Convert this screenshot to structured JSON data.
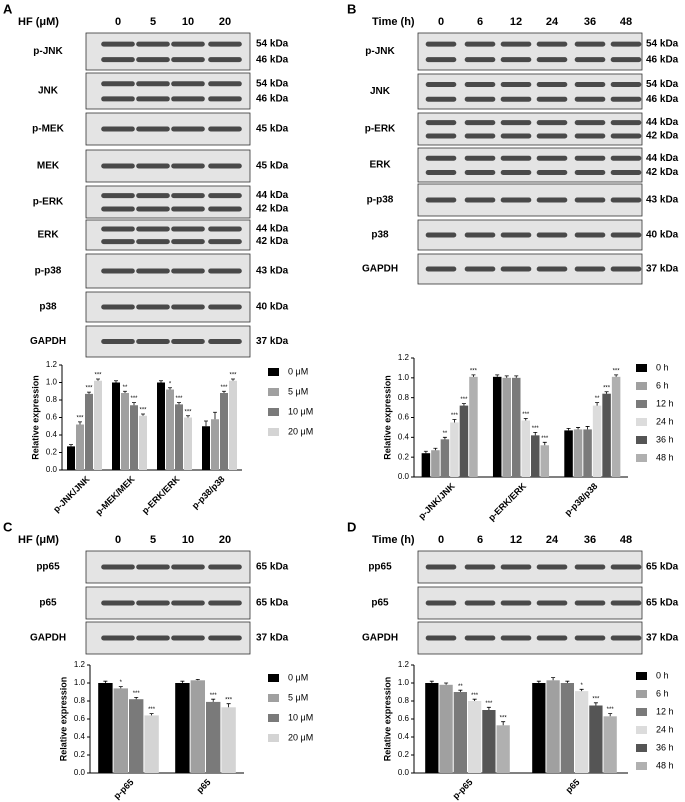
{
  "panels": [
    {
      "letter": "A",
      "header": "HF (μM)",
      "conditions": [
        "0",
        "5",
        "10",
        "20"
      ],
      "rows": [
        {
          "label": "p-JNK",
          "kda": [
            "54 kDa",
            "46 kDa"
          ]
        },
        {
          "label": "JNK",
          "kda": [
            "54 kDa",
            "46 kDa"
          ]
        },
        {
          "label": "p-MEK",
          "kda": [
            "45 kDa"
          ]
        },
        {
          "label": "MEK",
          "kda": [
            "45 kDa"
          ]
        },
        {
          "label": "p-ERK",
          "kda": [
            "44 kDa",
            "42 kDa"
          ]
        },
        {
          "label": "ERK",
          "kda": [
            "44 kDa",
            "42 kDa"
          ]
        },
        {
          "label": "p-p38",
          "kda": [
            "43 kDa"
          ]
        },
        {
          "label": "p38",
          "kda": [
            "40 kDa"
          ]
        },
        {
          "label": "GAPDH",
          "kda": [
            "37 kDa"
          ]
        }
      ]
    },
    {
      "letter": "B",
      "header": "Time (h)",
      "conditions": [
        "0",
        "6",
        "12",
        "24",
        "36",
        "48"
      ],
      "rows": [
        {
          "label": "p-JNK",
          "kda": [
            "54 kDa",
            "46 kDa"
          ]
        },
        {
          "label": "JNK",
          "kda": [
            "54 kDa",
            "46 kDa"
          ]
        },
        {
          "label": "p-ERK",
          "kda": [
            "44 kDa",
            "42 kDa"
          ]
        },
        {
          "label": "ERK",
          "kda": [
            "44 kDa",
            "42 kDa"
          ]
        },
        {
          "label": "p-p38",
          "kda": [
            "43 kDa"
          ]
        },
        {
          "label": "p38",
          "kda": [
            "40 kDa"
          ]
        },
        {
          "label": "GAPDH",
          "kda": [
            "37 kDa"
          ]
        }
      ]
    },
    {
      "letter": "C",
      "header": "HF (μM)",
      "conditions": [
        "0",
        "5",
        "10",
        "20"
      ],
      "rows": [
        {
          "label": "pp65",
          "kda": [
            "65 kDa"
          ]
        },
        {
          "label": "p65",
          "kda": [
            "65 kDa"
          ]
        },
        {
          "label": "GAPDH",
          "kda": [
            "37 kDa"
          ]
        }
      ]
    },
    {
      "letter": "D",
      "header": "Time (h)",
      "conditions": [
        "0",
        "6",
        "12",
        "24",
        "36",
        "48"
      ],
      "rows": [
        {
          "label": "pp65",
          "kda": [
            "65 kDa"
          ]
        },
        {
          "label": "p65",
          "kda": [
            "65 kDa"
          ]
        },
        {
          "label": "GAPDH",
          "kda": [
            "37 kDa"
          ]
        }
      ]
    }
  ],
  "chart_data": [
    {
      "type": "bar",
      "ylabel": "Relative expression",
      "categories": [
        "p-JNK/JNK",
        "p-MEK/MEK",
        "p-ERK/ERK",
        "p-p38/p38"
      ],
      "ylim": [
        0,
        1.2
      ],
      "yticks": [
        {
          "value": 0,
          "label": "0.0"
        },
        {
          "value": 0.2,
          "label": "0.2"
        },
        {
          "value": 0.4,
          "label": "0.4"
        },
        {
          "value": 0.6,
          "label": "0.6"
        },
        {
          "value": 0.8,
          "label": "0.8"
        },
        {
          "value": 1,
          "label": "1.0"
        },
        {
          "value": 1.2,
          "label": "1.2"
        }
      ],
      "series": [
        {
          "name": "0 μM",
          "color": "#000000",
          "values": [
            0.27,
            1.0,
            1.0,
            0.5
          ],
          "errors": [
            0.02,
            0.02,
            0.02,
            0.06
          ],
          "labels": [
            null,
            null,
            null,
            null
          ]
        },
        {
          "name": "5 μM",
          "color": "#a0a0a0",
          "values": [
            0.52,
            0.88,
            0.92,
            0.58
          ],
          "errors": [
            0.03,
            0.02,
            0.02,
            0.08
          ],
          "labels": [
            "***",
            "**",
            "*",
            null
          ]
        },
        {
          "name": "10 μM",
          "color": "#7a7a7a",
          "values": [
            0.87,
            0.74,
            0.75,
            0.88
          ],
          "errors": [
            0.02,
            0.03,
            0.02,
            0.02
          ],
          "labels": [
            "***",
            "***",
            "***",
            "***"
          ]
        },
        {
          "name": "20 μM",
          "color": "#d4d4d4",
          "values": [
            1.02,
            0.62,
            0.6,
            1.02
          ],
          "errors": [
            0.02,
            0.02,
            0.02,
            0.02
          ],
          "labels": [
            "***",
            "***",
            "***",
            "***"
          ]
        }
      ]
    },
    {
      "type": "bar",
      "ylabel": "Relative expression",
      "categories": [
        "p-JNK/JNK",
        "p-ERK/ERK",
        "p-p38/p38"
      ],
      "ylim": [
        0,
        1.2
      ],
      "yticks": [
        {
          "value": 0,
          "label": "0.0"
        },
        {
          "value": 0.2,
          "label": "0.2"
        },
        {
          "value": 0.4,
          "label": "0.4"
        },
        {
          "value": 0.6,
          "label": "0.6"
        },
        {
          "value": 0.8,
          "label": "0.8"
        },
        {
          "value": 1,
          "label": "1.0"
        },
        {
          "value": 1.2,
          "label": "1.2"
        }
      ],
      "series": [
        {
          "name": "0 h",
          "color": "#000000",
          "values": [
            0.24,
            1.01,
            0.47
          ],
          "errors": [
            0.02,
            0.02,
            0.02
          ],
          "labels": [
            null,
            null,
            null
          ]
        },
        {
          "name": "6 h",
          "color": "#a0a0a0",
          "values": [
            0.27,
            1.0,
            0.48
          ],
          "errors": [
            0.02,
            0.02,
            0.02
          ],
          "labels": [
            null,
            null,
            null
          ]
        },
        {
          "name": "12 h",
          "color": "#7a7a7a",
          "values": [
            0.38,
            1.0,
            0.48
          ],
          "errors": [
            0.02,
            0.02,
            0.03
          ],
          "labels": [
            "**",
            null,
            null
          ]
        },
        {
          "name": "24 h",
          "color": "#dcdcdc",
          "values": [
            0.55,
            0.57,
            0.72
          ],
          "errors": [
            0.03,
            0.02,
            0.03
          ],
          "labels": [
            "***",
            "***",
            "**"
          ]
        },
        {
          "name": "36 h",
          "color": "#555555",
          "values": [
            0.72,
            0.42,
            0.84
          ],
          "errors": [
            0.02,
            0.03,
            0.02
          ],
          "labels": [
            "***",
            "***",
            "***"
          ]
        },
        {
          "name": "48 h",
          "color": "#b0b0b0",
          "values": [
            1.01,
            0.32,
            1.01
          ],
          "errors": [
            0.02,
            0.03,
            0.02
          ],
          "labels": [
            "***",
            "***",
            "***"
          ]
        }
      ]
    },
    {
      "type": "bar",
      "ylabel": "Relative expression",
      "categories": [
        "p-p65",
        "p65"
      ],
      "ylim": [
        0,
        1.2
      ],
      "yticks": [
        {
          "value": 0,
          "label": "0.0"
        },
        {
          "value": 0.2,
          "label": "0.2"
        },
        {
          "value": 0.4,
          "label": "0.4"
        },
        {
          "value": 0.6,
          "label": "0.6"
        },
        {
          "value": 0.8,
          "label": "0.8"
        },
        {
          "value": 1,
          "label": "1.0"
        },
        {
          "value": 1.2,
          "label": "1.2"
        }
      ],
      "series": [
        {
          "name": "0 μM",
          "color": "#000000",
          "values": [
            1.0,
            1.0
          ],
          "errors": [
            0.02,
            0.02
          ],
          "labels": [
            null,
            null
          ]
        },
        {
          "name": "5 μM",
          "color": "#a0a0a0",
          "values": [
            0.94,
            1.03
          ],
          "errors": [
            0.02,
            0.01
          ],
          "labels": [
            "*",
            null
          ]
        },
        {
          "name": "10 μM",
          "color": "#7a7a7a",
          "values": [
            0.82,
            0.79
          ],
          "errors": [
            0.02,
            0.03
          ],
          "labels": [
            "***",
            "***"
          ]
        },
        {
          "name": "20 μM",
          "color": "#d4d4d4",
          "values": [
            0.64,
            0.73
          ],
          "errors": [
            0.02,
            0.04
          ],
          "labels": [
            "***",
            "***"
          ]
        }
      ]
    },
    {
      "type": "bar",
      "ylabel": "Relative expression",
      "categories": [
        "p-p65",
        "p65"
      ],
      "ylim": [
        0,
        1.2
      ],
      "yticks": [
        {
          "value": 0,
          "label": "0.0"
        },
        {
          "value": 0.2,
          "label": "0.2"
        },
        {
          "value": 0.4,
          "label": "0.4"
        },
        {
          "value": 0.6,
          "label": "0.6"
        },
        {
          "value": 0.8,
          "label": "0.8"
        },
        {
          "value": 1,
          "label": "1.0"
        },
        {
          "value": 1.2,
          "label": "1.2"
        }
      ],
      "series": [
        {
          "name": "0 h",
          "color": "#000000",
          "values": [
            1.0,
            1.0
          ],
          "errors": [
            0.02,
            0.02
          ],
          "labels": [
            null,
            null
          ]
        },
        {
          "name": "6 h",
          "color": "#a0a0a0",
          "values": [
            0.98,
            1.03
          ],
          "errors": [
            0.02,
            0.03
          ],
          "labels": [
            null,
            null
          ]
        },
        {
          "name": "12 h",
          "color": "#7a7a7a",
          "values": [
            0.9,
            1.0
          ],
          "errors": [
            0.02,
            0.02
          ],
          "labels": [
            "**",
            null
          ]
        },
        {
          "name": "24 h",
          "color": "#dcdcdc",
          "values": [
            0.8,
            0.91
          ],
          "errors": [
            0.02,
            0.02
          ],
          "labels": [
            "***",
            "*"
          ]
        },
        {
          "name": "36 h",
          "color": "#555555",
          "values": [
            0.7,
            0.75
          ],
          "errors": [
            0.03,
            0.03
          ],
          "labels": [
            "***",
            "***"
          ]
        },
        {
          "name": "48 h",
          "color": "#b0b0b0",
          "values": [
            0.53,
            0.63
          ],
          "errors": [
            0.04,
            0.03
          ],
          "labels": [
            "***",
            "***"
          ]
        }
      ]
    }
  ]
}
